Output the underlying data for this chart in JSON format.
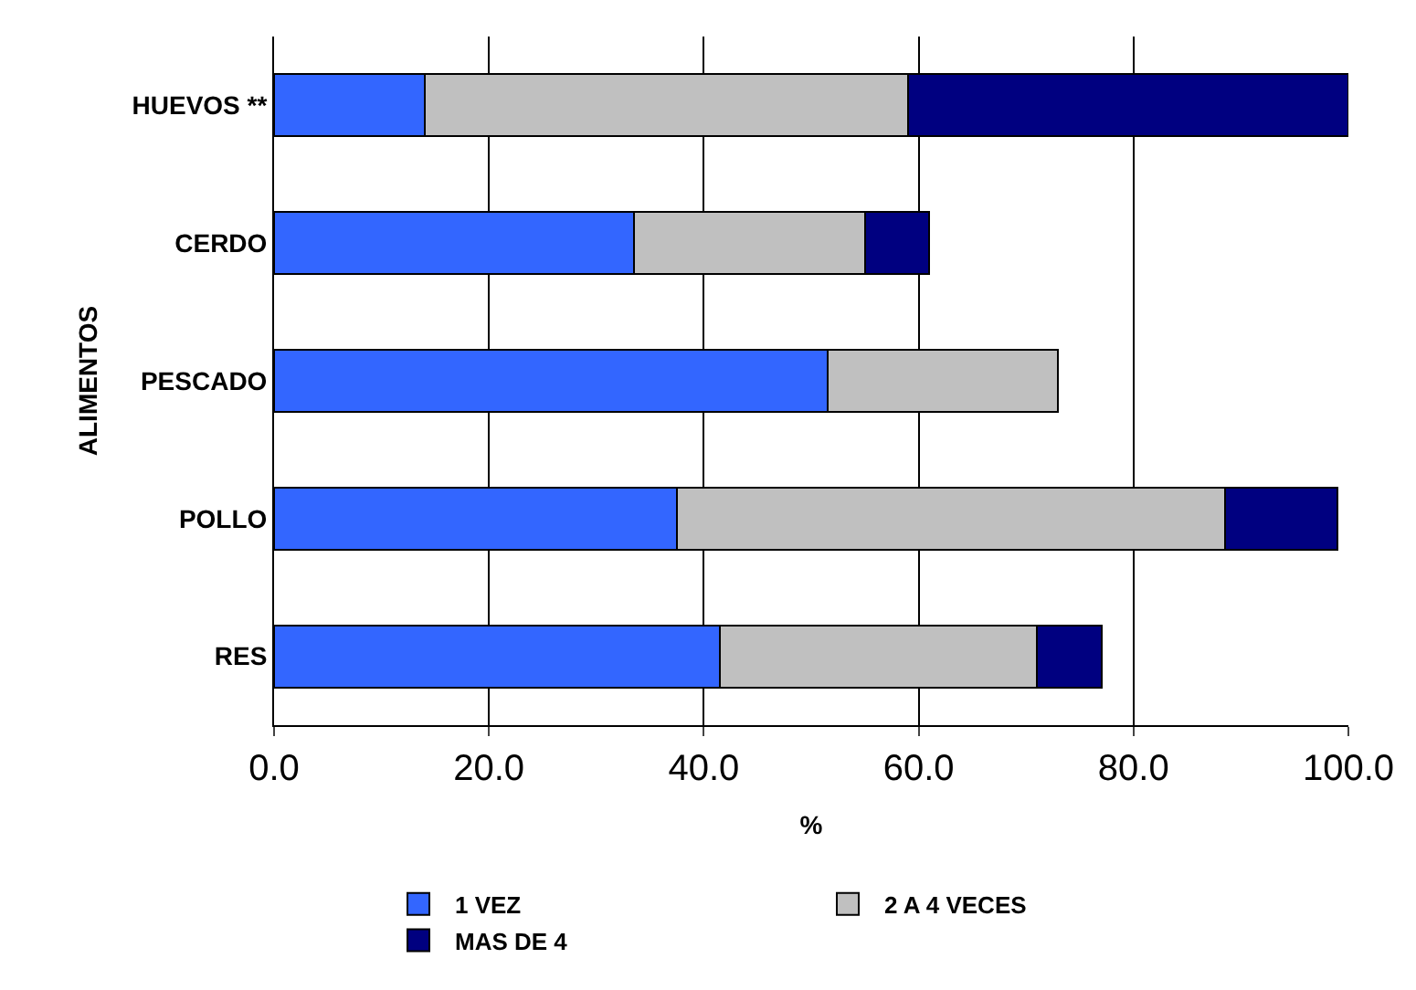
{
  "chart_data": {
    "type": "bar",
    "orientation": "horizontal",
    "stacked": true,
    "xlabel": "%",
    "ylabel": "ALIMENTOS",
    "categories": [
      "HUEVOS **",
      "CERDO",
      "PESCADO",
      "POLLO",
      "RES"
    ],
    "series": [
      {
        "name": "1 VEZ",
        "color": "#3366ff",
        "values": [
          14,
          33.5,
          51.5,
          37.5,
          41.5
        ]
      },
      {
        "name": "2 A 4 VECES",
        "color": "#c0c0c0",
        "values": [
          45,
          21.5,
          21.5,
          51,
          29.5
        ]
      },
      {
        "name": "MAS DE 4",
        "color": "#000080",
        "values": [
          41,
          6,
          null,
          10.5,
          6
        ]
      }
    ],
    "xlim": [
      0,
      100
    ],
    "xticks": [
      {
        "value": 0,
        "label": "0.0"
      },
      {
        "value": 20,
        "label": "20.0"
      },
      {
        "value": 40,
        "label": "40.0"
      },
      {
        "value": 60,
        "label": "60.0"
      },
      {
        "value": 80,
        "label": "80.0"
      },
      {
        "value": 100,
        "label": "100.0"
      }
    ],
    "grid": "x",
    "legend": "bottom"
  }
}
